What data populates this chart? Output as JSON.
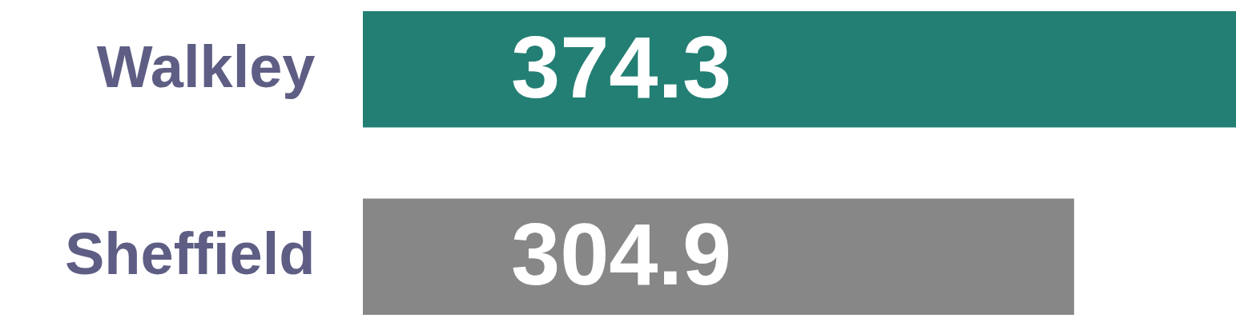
{
  "chart_data": {
    "type": "bar",
    "orientation": "horizontal",
    "categories": [
      "Walkley",
      "Sheffield"
    ],
    "values": [
      374.3,
      304.9
    ],
    "colors": [
      "#237f74",
      "#878787"
    ],
    "data_labels": true
  }
}
